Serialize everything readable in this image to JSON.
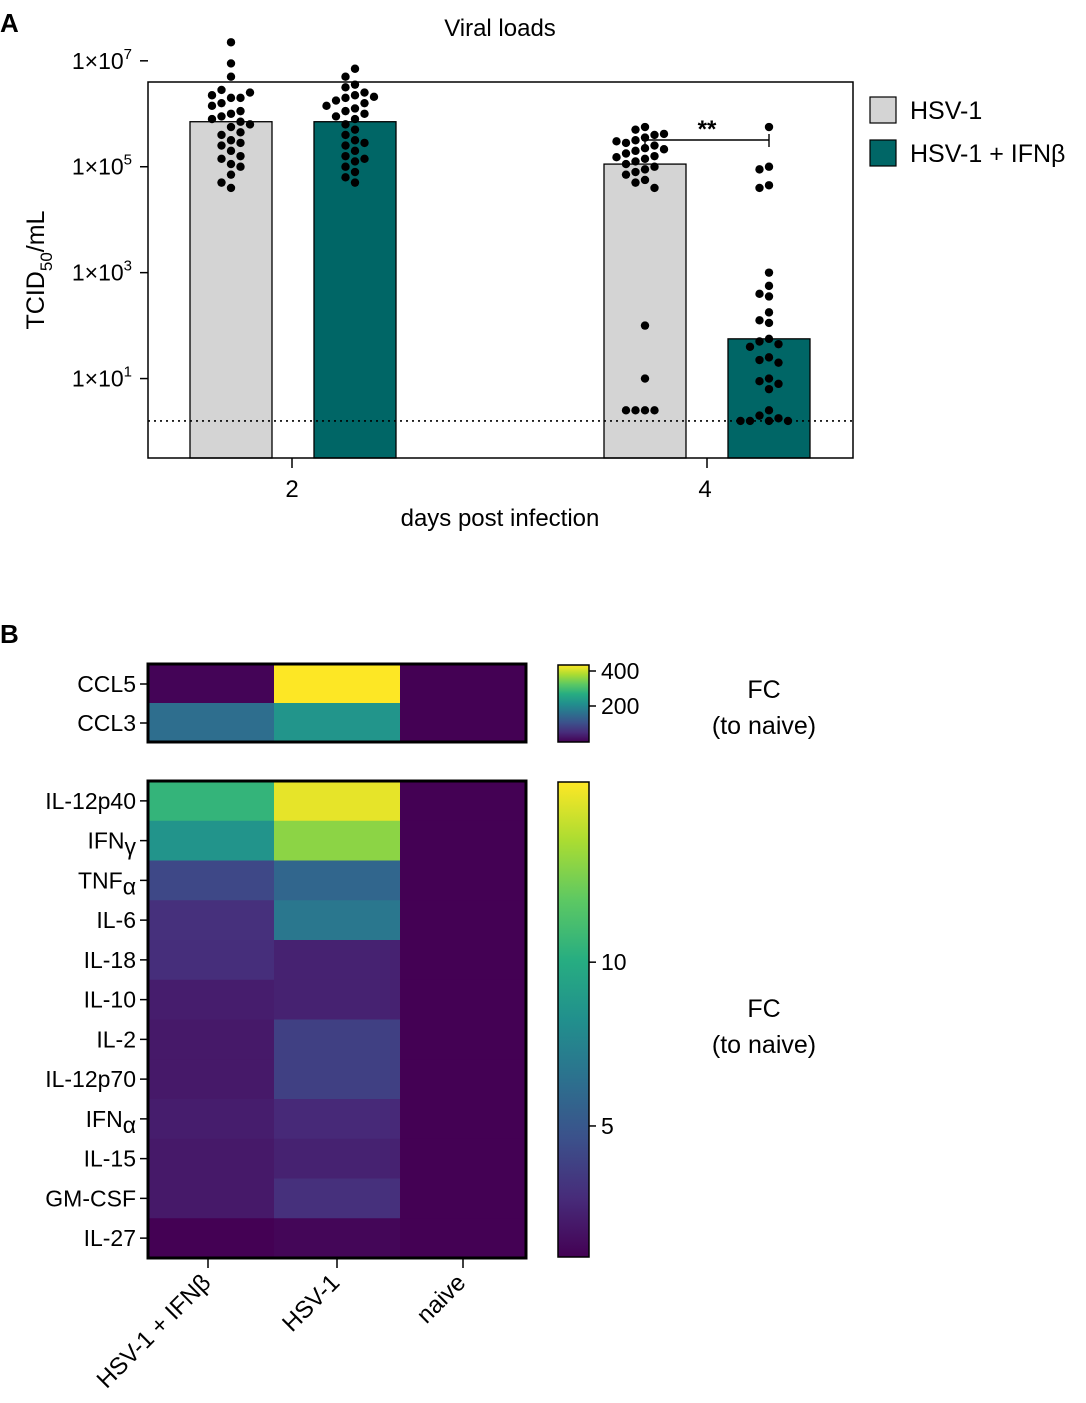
{
  "colors": {
    "hsv1_bar": "#d4d4d4",
    "ifn_bar": "#006666",
    "dot": "#000000",
    "axis": "#000000",
    "viridis": [
      "#440154",
      "#472c7a",
      "#3b518b",
      "#2c718e",
      "#21908d",
      "#27ad81",
      "#5cc863",
      "#aadc32",
      "#fde725"
    ]
  },
  "chart_data": [
    {
      "id": "A",
      "panel_label": "A",
      "type": "bar",
      "title": "Viral loads",
      "xlabel": "days post infection",
      "ylabel_main": "TCID",
      "ylabel_sub": "50",
      "ylabel_tail": "/mL",
      "yscale": "log10",
      "ylim_log10": [
        -0.5,
        6.6
      ],
      "yticks": [
        {
          "label": "1×10",
          "exp": "7",
          "log": 7
        },
        {
          "label": "1×10",
          "exp": "5",
          "log": 5
        },
        {
          "label": "1×10",
          "exp": "3",
          "log": 3
        },
        {
          "label": "1×10",
          "exp": "1",
          "log": 1
        }
      ],
      "categories": [
        "2",
        "4"
      ],
      "detection_limit_log10": 0.2,
      "series": [
        {
          "name": "HSV-1",
          "color_key": "hsv1_bar",
          "bar_log10": [
            5.85,
            5.05
          ],
          "points_log10": [
            [
              6.3,
              7.35,
              6.95,
              6.7,
              6.45,
              6.3,
              6.2,
              6.15,
              6.0,
              5.95,
              5.85,
              5.75,
              5.6,
              5.5,
              5.4,
              5.3,
              5.15,
              5.05,
              5.0,
              4.85,
              4.7,
              4.6,
              6.35,
              6.4,
              6.05,
              5.9,
              5.8,
              5.65,
              5.45,
              5.2
            ],
            [
              5.75,
              5.7,
              5.6,
              5.55,
              5.5,
              5.45,
              5.4,
              5.35,
              5.3,
              5.25,
              5.2,
              5.15,
              5.1,
              5.05,
              5.0,
              4.95,
              4.9,
              4.85,
              4.75,
              4.7,
              4.6,
              5.62,
              5.48,
              5.33,
              5.18,
              2.0,
              1.0,
              0.4,
              0.4,
              0.4,
              0.4
            ]
          ]
        },
        {
          "name": "HSV-1 + IFNβ",
          "color_key": "ifn_bar",
          "bar_log10": [
            5.85,
            1.75
          ],
          "points_log10": [
            [
              6.85,
              6.7,
              6.55,
              6.5,
              6.4,
              6.35,
              6.3,
              6.25,
              6.2,
              6.1,
              6.05,
              6.0,
              5.9,
              5.8,
              5.7,
              5.6,
              5.5,
              5.4,
              5.3,
              5.2,
              5.1,
              5.0,
              4.9,
              4.8,
              4.7,
              6.32,
              6.15,
              5.95,
              5.45,
              5.15
            ],
            [
              5.75,
              5.0,
              4.95,
              4.65,
              4.6,
              3.0,
              2.75,
              2.6,
              2.55,
              2.25,
              2.1,
              2.05,
              1.75,
              1.7,
              1.65,
              1.6,
              1.4,
              1.35,
              1.3,
              1.0,
              0.95,
              0.9,
              0.8,
              0.4,
              0.3,
              0.25,
              0.2,
              0.2,
              0.2,
              0.2
            ]
          ]
        }
      ],
      "significance": {
        "label": "**",
        "between": [
          "HSV-1",
          "HSV-1 + IFNβ"
        ],
        "category": "4"
      }
    },
    {
      "id": "B1",
      "panel_label": "B",
      "type": "heatmap",
      "columns": [
        "HSV-1 + IFNβ",
        "HSV-1",
        "naive"
      ],
      "rows": [
        "CCL5",
        "CCL3"
      ],
      "values": [
        [
          5,
          450
        ],
        [
          160,
          230
        ]
      ],
      "values_full": [
        [
          5,
          450,
          1
        ],
        [
          160,
          230,
          1
        ]
      ],
      "vmin": 1,
      "vmax": 440,
      "colorbar_ticks": [
        {
          "label": "400",
          "value": 400
        },
        {
          "label": "200",
          "value": 200
        }
      ],
      "colorbar_title": [
        "FC",
        "(to naive)"
      ]
    },
    {
      "id": "B2",
      "type": "heatmap",
      "columns": [
        "HSV-1 + IFNβ",
        "HSV-1",
        "naive"
      ],
      "rows": [
        {
          "base": "IL-12p40",
          "greek": ""
        },
        {
          "base": "IFN",
          "greek": "γ"
        },
        {
          "base": "TNF",
          "greek": "α"
        },
        {
          "base": "IL-6",
          "greek": ""
        },
        {
          "base": "IL-18",
          "greek": ""
        },
        {
          "base": "IL-10",
          "greek": ""
        },
        {
          "base": "IL-2",
          "greek": ""
        },
        {
          "base": "IL-12p70",
          "greek": ""
        },
        {
          "base": "IFN",
          "greek": "α"
        },
        {
          "base": "IL-15",
          "greek": ""
        },
        {
          "base": "GM-CSF",
          "greek": ""
        },
        {
          "base": "IL-27",
          "greek": ""
        }
      ],
      "values": [
        [
          10.5,
          15.0,
          1.0
        ],
        [
          8.5,
          13.0,
          1.0
        ],
        [
          4.2,
          5.8,
          1.0
        ],
        [
          3.0,
          6.8,
          1.0
        ],
        [
          2.9,
          2.4,
          1.0
        ],
        [
          2.2,
          2.4,
          1.0
        ],
        [
          2.0,
          3.8,
          1.0
        ],
        [
          2.0,
          3.8,
          1.0
        ],
        [
          2.2,
          2.7,
          1.0
        ],
        [
          2.0,
          2.4,
          1.0
        ],
        [
          2.0,
          3.0,
          1.0
        ],
        [
          0.8,
          1.2,
          1.0
        ]
      ],
      "vmin": 1,
      "vmax": 15.5,
      "colorbar_ticks": [
        {
          "label": "10",
          "value": 10
        },
        {
          "label": "5",
          "value": 5
        }
      ],
      "colorbar_title": [
        "FC",
        "(to naive)"
      ]
    }
  ]
}
